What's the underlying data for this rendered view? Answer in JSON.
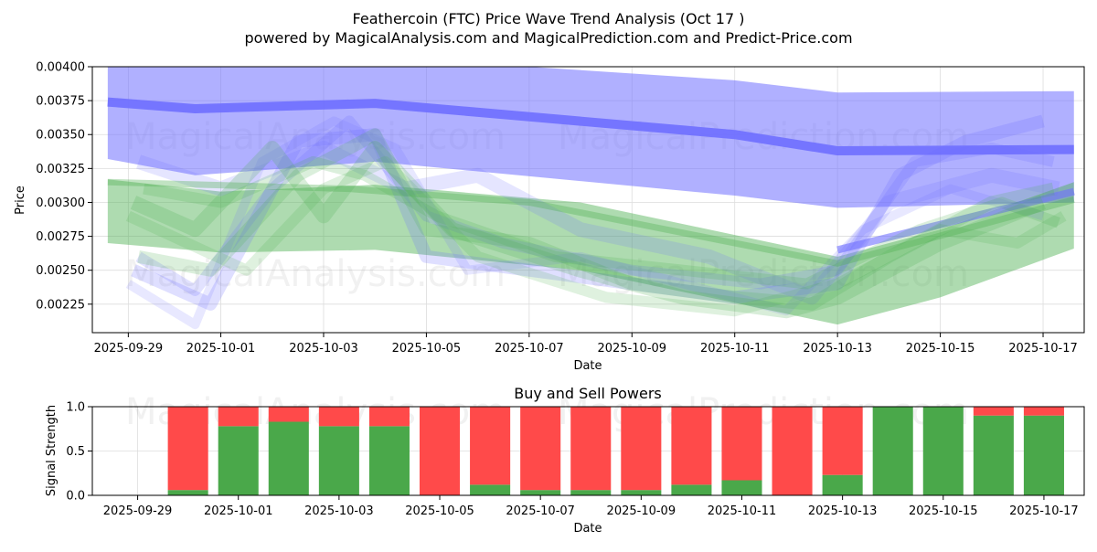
{
  "header": {
    "title": "Feathercoin (FTC) Price Wave Trend Analysis (Oct 17 )",
    "subtitle": "powered by MagicalAnalysis.com and MagicalPrediction.com and Predict-Price.com"
  },
  "watermarks": [
    "MagicalAnalysis.com",
    "MagicalPrediction.com"
  ],
  "colors": {
    "blue": "#6f6fff",
    "green": "#4caf50",
    "red": "#ff4a4a",
    "bar_green": "#4aa84a",
    "grid": "#dddddd"
  },
  "chart_data": [
    {
      "type": "line",
      "title": "",
      "xlabel": "Date",
      "ylabel": "Price",
      "x_domain_days": [
        -1.5,
        17.8
      ],
      "ylim": [
        0.00204,
        0.004
      ],
      "x_ticks": [
        {
          "day": -0.8,
          "label": "2025-09-29"
        },
        {
          "day": 1,
          "label": "2025-10-01"
        },
        {
          "day": 3,
          "label": "2025-10-03"
        },
        {
          "day": 5,
          "label": "2025-10-05"
        },
        {
          "day": 7,
          "label": "2025-10-07"
        },
        {
          "day": 9,
          "label": "2025-10-09"
        },
        {
          "day": 11,
          "label": "2025-10-11"
        },
        {
          "day": 13,
          "label": "2025-10-13"
        },
        {
          "day": 15,
          "label": "2025-10-15"
        },
        {
          "day": 17,
          "label": "2025-10-17"
        }
      ],
      "y_ticks": [
        {
          "value": 0.00225,
          "label": "0.00225"
        },
        {
          "value": 0.0025,
          "label": "0.00250"
        },
        {
          "value": 0.00275,
          "label": "0.00275"
        },
        {
          "value": 0.003,
          "label": "0.00300"
        },
        {
          "value": 0.00325,
          "label": "0.00325"
        },
        {
          "value": 0.0035,
          "label": "0.00350"
        },
        {
          "value": 0.00375,
          "label": "0.00375"
        },
        {
          "value": 0.004,
          "label": "0.00400"
        }
      ],
      "grid": true,
      "bands": [
        {
          "name": "blue-upper-band",
          "color": "blue",
          "opacity": 0.55,
          "upper": [
            [
              -1.2,
              0.00402
            ],
            [
              3,
              0.0041
            ],
            [
              7,
              0.004
            ],
            [
              11,
              0.0039
            ],
            [
              13,
              0.00381
            ],
            [
              17.6,
              0.00382
            ]
          ],
          "lower": [
            [
              -1.2,
              0.00332
            ],
            [
              0.5,
              0.0032
            ],
            [
              4,
              0.0033
            ],
            [
              11,
              0.00305
            ],
            [
              13,
              0.00296
            ],
            [
              17.6,
              0.003
            ]
          ]
        },
        {
          "name": "green-lower-band",
          "color": "green",
          "opacity": 0.45,
          "upper": [
            [
              -1.2,
              0.00317
            ],
            [
              1,
              0.00308
            ],
            [
              4,
              0.00313
            ],
            [
              8,
              0.003
            ],
            [
              13,
              0.0026
            ],
            [
              15,
              0.0028
            ],
            [
              17.6,
              0.00315
            ]
          ],
          "lower": [
            [
              -1.2,
              0.0027
            ],
            [
              1,
              0.00263
            ],
            [
              4,
              0.00265
            ],
            [
              8,
              0.0025
            ],
            [
              13,
              0.0021
            ],
            [
              15,
              0.0023
            ],
            [
              17.6,
              0.00266
            ]
          ]
        }
      ],
      "series": [
        {
          "name": "blue-trend-line",
          "color": "blue",
          "opacity": 0.9,
          "width": 10,
          "points": [
            [
              -1.2,
              0.00374
            ],
            [
              0.5,
              0.00369
            ],
            [
              4,
              0.00373
            ],
            [
              11,
              0.0035
            ],
            [
              13,
              0.00338
            ],
            [
              17.6,
              0.00339
            ]
          ]
        },
        {
          "name": "blue-lower-line",
          "color": "blue",
          "opacity": 0.6,
          "width": 8,
          "points": [
            [
              13,
              0.00265
            ],
            [
              17.6,
              0.00308
            ]
          ]
        },
        {
          "name": "blue-wave-1",
          "color": "blue",
          "opacity": 0.22,
          "width": 14,
          "points": [
            [
              -0.7,
              0.0025
            ],
            [
              0.8,
              0.00225
            ],
            [
              2.5,
              0.00345
            ],
            [
              4,
              0.0035
            ],
            [
              5,
              0.0026
            ],
            [
              7,
              0.0025
            ],
            [
              9,
              0.0024
            ],
            [
              11,
              0.0023
            ],
            [
              13,
              0.0024
            ],
            [
              14.2,
              0.0032
            ],
            [
              15.5,
              0.00345
            ],
            [
              17,
              0.0036
            ]
          ]
        },
        {
          "name": "blue-wave-2",
          "color": "blue",
          "opacity": 0.2,
          "width": 12,
          "points": [
            [
              -0.6,
              0.0026
            ],
            [
              0.5,
              0.00235
            ],
            [
              2,
              0.0031
            ],
            [
              3.5,
              0.0036
            ],
            [
              5,
              0.0029
            ],
            [
              6.5,
              0.0027
            ],
            [
              9,
              0.0025
            ],
            [
              11.5,
              0.0024
            ],
            [
              13,
              0.0025
            ],
            [
              14.5,
              0.0033
            ],
            [
              16,
              0.0034
            ],
            [
              17.2,
              0.0033
            ]
          ]
        },
        {
          "name": "blue-wave-3",
          "color": "blue",
          "opacity": 0.16,
          "width": 10,
          "points": [
            [
              -0.8,
              0.0024
            ],
            [
              0.5,
              0.0021
            ],
            [
              1.8,
              0.0033
            ],
            [
              3.2,
              0.0036
            ],
            [
              4.4,
              0.0034
            ],
            [
              5.8,
              0.0025
            ],
            [
              8,
              0.0026
            ],
            [
              10,
              0.0024
            ],
            [
              12,
              0.0022
            ],
            [
              13.5,
              0.0028
            ],
            [
              15.2,
              0.0031
            ],
            [
              17,
              0.0029
            ]
          ]
        },
        {
          "name": "blue-wave-4",
          "color": "blue",
          "opacity": 0.18,
          "width": 16,
          "points": [
            [
              -0.6,
              0.0033
            ],
            [
              1,
              0.0031
            ],
            [
              3,
              0.0034
            ],
            [
              4.6,
              0.0031
            ],
            [
              6,
              0.0032
            ],
            [
              8,
              0.0028
            ],
            [
              10.5,
              0.0026
            ],
            [
              12.5,
              0.0023
            ],
            [
              14,
              0.003
            ],
            [
              16,
              0.0032
            ],
            [
              17.3,
              0.0031
            ]
          ]
        },
        {
          "name": "green-wave-1",
          "color": "green",
          "opacity": 0.22,
          "width": 16,
          "points": [
            [
              -0.7,
              0.003
            ],
            [
              0.5,
              0.0028
            ],
            [
              2,
              0.0034
            ],
            [
              3,
              0.0029
            ],
            [
              4,
              0.0034
            ],
            [
              5.5,
              0.0028
            ],
            [
              8,
              0.0025
            ],
            [
              10,
              0.0023
            ],
            [
              12,
              0.0022
            ],
            [
              13,
              0.0023
            ],
            [
              15,
              0.0027
            ],
            [
              17,
              0.003
            ]
          ]
        },
        {
          "name": "green-wave-2",
          "color": "green",
          "opacity": 0.2,
          "width": 14,
          "points": [
            [
              -0.6,
              0.0026
            ],
            [
              0.8,
              0.0025
            ],
            [
              2.5,
              0.0032
            ],
            [
              4,
              0.0035
            ],
            [
              5,
              0.0028
            ],
            [
              7,
              0.0027
            ],
            [
              9,
              0.0024
            ],
            [
              11,
              0.0023
            ],
            [
              12.5,
              0.00225
            ],
            [
              14,
              0.0026
            ],
            [
              16,
              0.003
            ],
            [
              17.2,
              0.0031
            ]
          ]
        },
        {
          "name": "green-wave-3",
          "color": "green",
          "opacity": 0.18,
          "width": 12,
          "points": [
            [
              -0.8,
              0.0029
            ],
            [
              1.5,
              0.0025
            ],
            [
              3,
              0.0031
            ],
            [
              4.2,
              0.0033
            ],
            [
              6,
              0.0026
            ],
            [
              8.5,
              0.0023
            ],
            [
              11,
              0.0022
            ],
            [
              13,
              0.0024
            ],
            [
              15,
              0.0028
            ],
            [
              16.5,
              0.0027
            ],
            [
              17.4,
              0.0029
            ]
          ]
        },
        {
          "name": "green-wave-4",
          "color": "green",
          "opacity": 0.2,
          "width": 12,
          "points": [
            [
              -0.5,
              0.0031
            ],
            [
              1,
              0.003
            ],
            [
              2.8,
              0.0033
            ],
            [
              3.8,
              0.0032
            ],
            [
              5.2,
              0.0029
            ],
            [
              7.5,
              0.0026
            ],
            [
              10,
              0.0025
            ],
            [
              12.4,
              0.0024
            ],
            [
              14.6,
              0.0028
            ],
            [
              16.2,
              0.003
            ],
            [
              17.3,
              0.00285
            ]
          ]
        },
        {
          "name": "green-trend-line",
          "color": "green",
          "opacity": 0.35,
          "width": 7,
          "points": [
            [
              -1.2,
              0.00315
            ],
            [
              3.5,
              0.0031
            ],
            [
              7,
              0.003
            ],
            [
              13,
              0.00255
            ],
            [
              17.6,
              0.00302
            ]
          ]
        }
      ]
    },
    {
      "type": "bar",
      "title": "Buy and Sell Powers",
      "xlabel": "Date",
      "ylabel": "Signal Strength",
      "x_domain_days": [
        -1.9,
        17.8
      ],
      "ylim": [
        0,
        1.0
      ],
      "x_ticks": [
        {
          "day": -1,
          "label": "2025-09-29"
        },
        {
          "day": 1,
          "label": "2025-10-01"
        },
        {
          "day": 3,
          "label": "2025-10-03"
        },
        {
          "day": 5,
          "label": "2025-10-05"
        },
        {
          "day": 7,
          "label": "2025-10-07"
        },
        {
          "day": 9,
          "label": "2025-10-09"
        },
        {
          "day": 11,
          "label": "2025-10-11"
        },
        {
          "day": 13,
          "label": "2025-10-13"
        },
        {
          "day": 15,
          "label": "2025-10-15"
        },
        {
          "day": 17,
          "label": "2025-10-17"
        }
      ],
      "y_ticks": [
        {
          "value": 0.0,
          "label": "0.0"
        },
        {
          "value": 0.5,
          "label": "0.5"
        },
        {
          "value": 1.0,
          "label": "1.0"
        }
      ],
      "bar_width_days": 0.8,
      "bar_days": [
        0,
        1,
        2,
        3,
        4,
        5,
        6,
        7,
        8,
        9,
        10,
        11,
        12,
        13,
        14,
        15,
        16,
        17
      ],
      "series": [
        {
          "name": "Buy",
          "color": "bar_green",
          "values": [
            0.06,
            0.78,
            0.83,
            0.78,
            0.78,
            0.0,
            0.12,
            0.06,
            0.06,
            0.06,
            0.12,
            0.17,
            0.0,
            0.23,
            1.0,
            1.0,
            0.9,
            0.9
          ]
        },
        {
          "name": "Sell",
          "color": "red",
          "values": [
            0.94,
            0.22,
            0.17,
            0.22,
            0.22,
            1.0,
            0.88,
            0.94,
            0.94,
            0.94,
            0.88,
            0.83,
            1.0,
            0.77,
            0.0,
            0.0,
            0.1,
            0.1
          ]
        }
      ]
    }
  ]
}
